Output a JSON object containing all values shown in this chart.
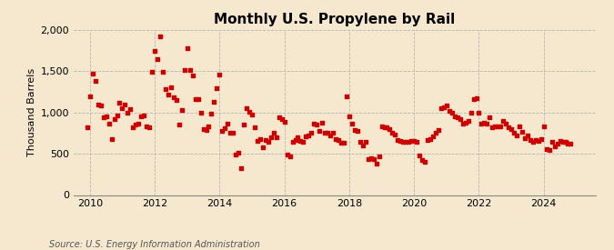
{
  "title": "Monthly U.S. Propylene by Rail",
  "ylabel": "Thousand Barrels",
  "source": "Source: U.S. Energy Information Administration",
  "background_color": "#f5e8ce",
  "marker_color": "#cc0000",
  "xlim": [
    2009.5,
    2025.6
  ],
  "ylim": [
    0,
    2000
  ],
  "yticks": [
    0,
    500,
    1000,
    1500,
    2000
  ],
  "xticks": [
    2010,
    2012,
    2014,
    2016,
    2018,
    2020,
    2022,
    2024
  ],
  "data": [
    [
      2009.917,
      820
    ],
    [
      2010.0,
      1200
    ],
    [
      2010.083,
      1470
    ],
    [
      2010.167,
      1380
    ],
    [
      2010.25,
      1100
    ],
    [
      2010.333,
      1080
    ],
    [
      2010.417,
      940
    ],
    [
      2010.5,
      950
    ],
    [
      2010.583,
      870
    ],
    [
      2010.667,
      680
    ],
    [
      2010.75,
      920
    ],
    [
      2010.833,
      960
    ],
    [
      2010.917,
      1120
    ],
    [
      2011.0,
      1050
    ],
    [
      2011.083,
      1100
    ],
    [
      2011.167,
      1000
    ],
    [
      2011.25,
      1040
    ],
    [
      2011.333,
      820
    ],
    [
      2011.417,
      850
    ],
    [
      2011.5,
      870
    ],
    [
      2011.583,
      950
    ],
    [
      2011.667,
      960
    ],
    [
      2011.75,
      830
    ],
    [
      2011.833,
      820
    ],
    [
      2011.917,
      1490
    ],
    [
      2012.0,
      1750
    ],
    [
      2012.083,
      1650
    ],
    [
      2012.167,
      1920
    ],
    [
      2012.25,
      1490
    ],
    [
      2012.333,
      1280
    ],
    [
      2012.417,
      1220
    ],
    [
      2012.5,
      1310
    ],
    [
      2012.583,
      1190
    ],
    [
      2012.667,
      1150
    ],
    [
      2012.75,
      850
    ],
    [
      2012.833,
      1030
    ],
    [
      2012.917,
      1510
    ],
    [
      2013.0,
      1780
    ],
    [
      2013.083,
      1510
    ],
    [
      2013.167,
      1450
    ],
    [
      2013.25,
      1160
    ],
    [
      2013.333,
      1160
    ],
    [
      2013.417,
      1000
    ],
    [
      2013.5,
      800
    ],
    [
      2013.583,
      790
    ],
    [
      2013.667,
      830
    ],
    [
      2013.75,
      990
    ],
    [
      2013.833,
      1130
    ],
    [
      2013.917,
      1290
    ],
    [
      2014.0,
      1460
    ],
    [
      2014.083,
      780
    ],
    [
      2014.167,
      810
    ],
    [
      2014.25,
      860
    ],
    [
      2014.333,
      750
    ],
    [
      2014.417,
      760
    ],
    [
      2014.5,
      490
    ],
    [
      2014.583,
      510
    ],
    [
      2014.667,
      320
    ],
    [
      2014.75,
      850
    ],
    [
      2014.833,
      1050
    ],
    [
      2014.917,
      1010
    ],
    [
      2015.0,
      970
    ],
    [
      2015.083,
      820
    ],
    [
      2015.167,
      660
    ],
    [
      2015.25,
      680
    ],
    [
      2015.333,
      580
    ],
    [
      2015.417,
      670
    ],
    [
      2015.5,
      650
    ],
    [
      2015.583,
      700
    ],
    [
      2015.667,
      760
    ],
    [
      2015.75,
      700
    ],
    [
      2015.833,
      940
    ],
    [
      2015.917,
      920
    ],
    [
      2016.0,
      890
    ],
    [
      2016.083,
      490
    ],
    [
      2016.167,
      470
    ],
    [
      2016.25,
      650
    ],
    [
      2016.333,
      670
    ],
    [
      2016.417,
      700
    ],
    [
      2016.5,
      660
    ],
    [
      2016.583,
      640
    ],
    [
      2016.667,
      710
    ],
    [
      2016.75,
      720
    ],
    [
      2016.833,
      760
    ],
    [
      2016.917,
      870
    ],
    [
      2017.0,
      850
    ],
    [
      2017.083,
      780
    ],
    [
      2017.167,
      880
    ],
    [
      2017.25,
      750
    ],
    [
      2017.333,
      760
    ],
    [
      2017.417,
      720
    ],
    [
      2017.5,
      760
    ],
    [
      2017.583,
      680
    ],
    [
      2017.667,
      670
    ],
    [
      2017.75,
      630
    ],
    [
      2017.833,
      630
    ],
    [
      2017.917,
      1200
    ],
    [
      2018.0,
      950
    ],
    [
      2018.083,
      870
    ],
    [
      2018.167,
      790
    ],
    [
      2018.25,
      780
    ],
    [
      2018.333,
      650
    ],
    [
      2018.417,
      600
    ],
    [
      2018.5,
      650
    ],
    [
      2018.583,
      430
    ],
    [
      2018.667,
      450
    ],
    [
      2018.75,
      440
    ],
    [
      2018.833,
      380
    ],
    [
      2018.917,
      470
    ],
    [
      2019.0,
      830
    ],
    [
      2019.083,
      820
    ],
    [
      2019.167,
      820
    ],
    [
      2019.25,
      800
    ],
    [
      2019.333,
      760
    ],
    [
      2019.417,
      730
    ],
    [
      2019.5,
      670
    ],
    [
      2019.583,
      660
    ],
    [
      2019.667,
      650
    ],
    [
      2019.75,
      640
    ],
    [
      2019.833,
      640
    ],
    [
      2019.917,
      660
    ],
    [
      2020.0,
      660
    ],
    [
      2020.083,
      650
    ],
    [
      2020.167,
      480
    ],
    [
      2020.25,
      420
    ],
    [
      2020.333,
      400
    ],
    [
      2020.417,
      670
    ],
    [
      2020.5,
      680
    ],
    [
      2020.583,
      710
    ],
    [
      2020.667,
      760
    ],
    [
      2020.75,
      790
    ],
    [
      2020.833,
      1050
    ],
    [
      2020.917,
      1060
    ],
    [
      2021.0,
      1080
    ],
    [
      2021.083,
      1020
    ],
    [
      2021.167,
      1000
    ],
    [
      2021.25,
      950
    ],
    [
      2021.333,
      940
    ],
    [
      2021.417,
      920
    ],
    [
      2021.5,
      870
    ],
    [
      2021.583,
      880
    ],
    [
      2021.667,
      900
    ],
    [
      2021.75,
      1000
    ],
    [
      2021.833,
      1160
    ],
    [
      2021.917,
      1170
    ],
    [
      2022.0,
      1000
    ],
    [
      2022.083,
      870
    ],
    [
      2022.167,
      880
    ],
    [
      2022.25,
      870
    ],
    [
      2022.333,
      940
    ],
    [
      2022.417,
      820
    ],
    [
      2022.5,
      830
    ],
    [
      2022.583,
      830
    ],
    [
      2022.667,
      830
    ],
    [
      2022.75,
      900
    ],
    [
      2022.833,
      870
    ],
    [
      2022.917,
      820
    ],
    [
      2023.0,
      800
    ],
    [
      2023.083,
      750
    ],
    [
      2023.167,
      720
    ],
    [
      2023.25,
      830
    ],
    [
      2023.333,
      770
    ],
    [
      2023.417,
      690
    ],
    [
      2023.5,
      720
    ],
    [
      2023.583,
      670
    ],
    [
      2023.667,
      650
    ],
    [
      2023.75,
      670
    ],
    [
      2023.833,
      660
    ],
    [
      2023.917,
      680
    ],
    [
      2024.0,
      830
    ],
    [
      2024.083,
      560
    ],
    [
      2024.167,
      540
    ],
    [
      2024.25,
      640
    ],
    [
      2024.333,
      590
    ],
    [
      2024.417,
      620
    ],
    [
      2024.5,
      660
    ],
    [
      2024.583,
      640
    ],
    [
      2024.667,
      640
    ],
    [
      2024.75,
      620
    ],
    [
      2024.833,
      620
    ]
  ],
  "title_fontsize": 11,
  "tick_fontsize": 8,
  "ylabel_fontsize": 8,
  "source_fontsize": 7
}
